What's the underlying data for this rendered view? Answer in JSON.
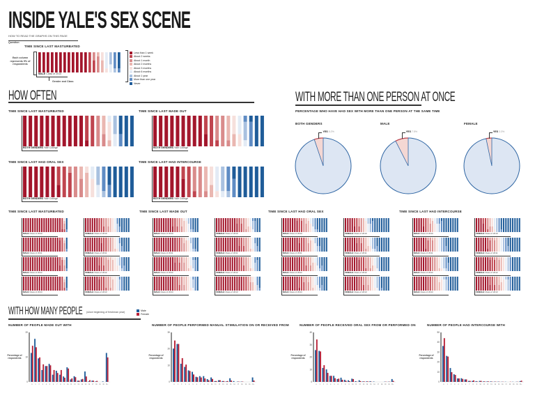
{
  "title": "INSIDE YALE'S SEX SCENE",
  "how_to_read": {
    "heading": "HOW TO READ THE GRAPHS ON THIS PAGE",
    "question_label": "Question",
    "question": "TIME SINCE LAST MASTURBATED",
    "column_note": "Each column represents 5% of respondents",
    "gender_label": "MALE",
    "class_label": "Class of 2010",
    "gender_class_note": "Gender and Class",
    "example_distribution": [
      60,
      8,
      6,
      4,
      3,
      6,
      4,
      5,
      4
    ]
  },
  "legend": {
    "categories": [
      "Less than 1 week",
      "About 2 weeks",
      "About 1 month",
      "About 2 months",
      "About 3 months",
      "About 6 months",
      "About 1 year",
      "More than one year",
      "Never"
    ],
    "colors": [
      "#a3162c",
      "#c0454f",
      "#d98b8b",
      "#eab7b1",
      "#f6e0dc",
      "#e3ebf5",
      "#a9c1e0",
      "#5f8cc4",
      "#1f5c99"
    ]
  },
  "how_often": {
    "heading": "HOW OFTEN",
    "group_gender": "BOTH GENDERS",
    "group_class": "Yale College",
    "charts": [
      {
        "question": "TIME SINCE LAST MASTURBATED",
        "distribution": [
          56,
          9,
          7,
          4,
          3,
          3,
          3,
          2,
          13
        ]
      },
      {
        "question": "TIME SINCE LAST MADE OUT",
        "distribution": [
          47,
          9,
          10,
          6,
          5,
          4,
          3,
          5,
          11
        ]
      },
      {
        "question": "TIME SINCE LAST HAD ORAL SEX",
        "distribution": [
          32,
          12,
          9,
          6,
          4,
          4,
          4,
          6,
          23
        ]
      },
      {
        "question": "TIME SINCE LAST HAD INTERCOURSE",
        "distribution": [
          28,
          8,
          10,
          6,
          4,
          5,
          5,
          7,
          27
        ]
      }
    ]
  },
  "by_class": {
    "male_label": "MALE",
    "female_label": "FEMALE",
    "classes": [
      "Class of 2010",
      "Class of 2011",
      "Class of 2012",
      "Class of 2013"
    ],
    "sections": [
      {
        "question": "TIME SINCE LAST MASTURBATED",
        "male": [
          [
            86,
            5,
            2,
            1,
            1,
            0,
            0,
            1,
            4
          ],
          [
            84,
            6,
            3,
            1,
            1,
            0,
            0,
            1,
            4
          ],
          [
            82,
            7,
            3,
            2,
            1,
            0,
            0,
            1,
            4
          ],
          [
            85,
            6,
            2,
            1,
            1,
            0,
            0,
            1,
            4
          ]
        ],
        "female": [
          [
            30,
            12,
            10,
            8,
            6,
            4,
            3,
            4,
            23
          ],
          [
            38,
            12,
            10,
            6,
            5,
            4,
            3,
            4,
            18
          ],
          [
            32,
            10,
            12,
            10,
            8,
            5,
            4,
            6,
            13
          ],
          [
            34,
            12,
            10,
            8,
            6,
            5,
            4,
            6,
            15
          ]
        ]
      },
      {
        "question": "TIME SINCE LAST MADE OUT",
        "male": [
          [
            42,
            10,
            10,
            7,
            5,
            4,
            3,
            5,
            14
          ],
          [
            50,
            10,
            8,
            6,
            5,
            4,
            3,
            5,
            9
          ],
          [
            48,
            10,
            10,
            8,
            6,
            4,
            3,
            5,
            6
          ],
          [
            45,
            12,
            10,
            8,
            6,
            5,
            3,
            6,
            5
          ]
        ],
        "female": [
          [
            48,
            10,
            8,
            6,
            5,
            4,
            3,
            5,
            11
          ],
          [
            52,
            10,
            8,
            6,
            5,
            4,
            3,
            4,
            8
          ],
          [
            50,
            12,
            8,
            6,
            5,
            4,
            3,
            6,
            6
          ],
          [
            60,
            10,
            8,
            5,
            4,
            3,
            2,
            4,
            4
          ]
        ]
      },
      {
        "question": "TIME SINCE LAST HAD ORAL SEX",
        "male": [
          [
            34,
            10,
            9,
            6,
            4,
            4,
            4,
            5,
            24
          ],
          [
            38,
            12,
            8,
            6,
            5,
            4,
            4,
            5,
            18
          ],
          [
            40,
            12,
            10,
            6,
            5,
            4,
            4,
            6,
            13
          ],
          [
            36,
            12,
            10,
            8,
            6,
            5,
            4,
            6,
            13
          ]
        ],
        "female": [
          [
            22,
            10,
            8,
            5,
            4,
            4,
            5,
            6,
            36
          ],
          [
            28,
            10,
            8,
            6,
            5,
            4,
            5,
            6,
            28
          ],
          [
            34,
            12,
            10,
            6,
            5,
            4,
            4,
            5,
            20
          ],
          [
            30,
            12,
            10,
            8,
            6,
            5,
            4,
            6,
            19
          ]
        ]
      },
      {
        "question": "TIME SINCE LAST HAD INTERCOURSE",
        "male": [
          [
            22,
            8,
            8,
            6,
            4,
            5,
            5,
            6,
            36
          ],
          [
            26,
            8,
            10,
            6,
            5,
            5,
            5,
            7,
            28
          ],
          [
            30,
            10,
            10,
            6,
            5,
            5,
            5,
            7,
            22
          ],
          [
            30,
            10,
            10,
            8,
            6,
            5,
            5,
            6,
            20
          ]
        ],
        "female": [
          [
            18,
            8,
            6,
            5,
            4,
            4,
            5,
            6,
            44
          ],
          [
            26,
            8,
            10,
            6,
            5,
            5,
            5,
            7,
            28
          ],
          [
            34,
            10,
            10,
            6,
            5,
            5,
            5,
            5,
            20
          ],
          [
            32,
            10,
            10,
            6,
            6,
            5,
            5,
            6,
            20
          ]
        ]
      }
    ]
  },
  "multi_person": {
    "heading": "WITH MORE THAN ONE PERSON AT ONCE",
    "subtitle": "PERCENTAGE WHO HAVE HAD SEX WITH MORE THAN ONE PERSON AT THE SAME TIME",
    "yes_label": "YES",
    "fill_colors": {
      "no": "#dde6f3",
      "no_stroke": "#2e65a3",
      "yes": "#f4d7d3",
      "yes_stroke": "#c0454f"
    }
  },
  "chart_data": [
    {
      "type": "pie",
      "title": "BOTH GENDERS",
      "slices": [
        {
          "label": "YES",
          "value": 5.2,
          "display": "5.2%"
        },
        {
          "label": "",
          "value": 94.8
        }
      ]
    },
    {
      "type": "pie",
      "title": "MALE",
      "slices": [
        {
          "label": "YES",
          "value": 7.5,
          "display": "7.5%"
        },
        {
          "label": "",
          "value": 92.5
        }
      ]
    },
    {
      "type": "pie",
      "title": "FEMALE",
      "slices": [
        {
          "label": "YES",
          "value": 3.3,
          "display": "3.3%"
        },
        {
          "label": "",
          "value": 96.7
        }
      ]
    },
    {
      "type": "bar",
      "title": "NUMBER OF PEOPLE MADE OUT WITH",
      "ylabel": "Percentage of respondents",
      "ylim": [
        0,
        20
      ],
      "yticks": [
        0,
        10,
        20
      ],
      "categories": [
        "0",
        "1",
        "2",
        "3",
        "4",
        "5",
        "6",
        "7",
        "8",
        "9",
        "10",
        "11",
        "12",
        "13",
        "14",
        "15",
        "16",
        "17",
        "18",
        "19",
        "20",
        "21+"
      ],
      "series": [
        {
          "name": "Male",
          "values": [
            11.7,
            17.4,
            9.5,
            4.8,
            6.4,
            7.3,
            2.9,
            4.5,
            2.9,
            2.2,
            5.9,
            1.0,
            2.3,
            0.5,
            1.0,
            4.2,
            0.2,
            0.5,
            0.2,
            0,
            0.2,
            11.7
          ]
        },
        {
          "name": "Female",
          "values": [
            14.6,
            14.0,
            9.9,
            7.1,
            6.4,
            6.7,
            4.8,
            3.6,
            4.8,
            1.7,
            5.4,
            1.4,
            1.9,
            0.5,
            1.2,
            2.2,
            0.7,
            0.5,
            0.4,
            0,
            0,
            9.9
          ]
        }
      ]
    },
    {
      "type": "bar",
      "title": "NUMBER OF PEOPLE PERFORMED MANUAL STIMULATION ON OR RECEIVED FROM",
      "ylabel": "Percentage of respondents",
      "ylim": [
        0,
        30
      ],
      "yticks": [
        0,
        10,
        20,
        30
      ],
      "categories": [
        "0",
        "1",
        "2",
        "3",
        "4",
        "5",
        "6",
        "7",
        "8",
        "9",
        "10",
        "11",
        "12",
        "13",
        "14",
        "15",
        "16",
        "17",
        "18",
        "19",
        "20",
        "21+"
      ],
      "series": [
        {
          "name": "Male",
          "values": [
            20.2,
            23.0,
            11.0,
            9.1,
            7.0,
            6.1,
            3.1,
            3.5,
            3.5,
            1.7,
            2.7,
            0.5,
            1.0,
            0.5,
            0.3,
            2.2,
            0.5,
            0.2,
            0.2,
            0,
            0,
            2.7
          ]
        },
        {
          "name": "Female",
          "values": [
            25.1,
            23.0,
            14.4,
            10.5,
            6.6,
            4.5,
            2.8,
            2.7,
            2.1,
            1.0,
            1.8,
            0.5,
            1.0,
            0.5,
            0.5,
            0.8,
            0,
            0.2,
            0.2,
            0,
            0,
            0.8
          ]
        }
      ]
    },
    {
      "type": "bar",
      "title": "NUMBER OF PEOPLE RECEIVED ORAL SEX FROM OR PERFORMED ON",
      "ylabel": "Percentage of respondents",
      "ylim": [
        0,
        40
      ],
      "yticks": [
        0,
        10,
        20,
        30,
        40
      ],
      "categories": [
        "0",
        "1",
        "2",
        "3",
        "4",
        "5",
        "6",
        "7",
        "8",
        "9",
        "10",
        "11",
        "12",
        "13",
        "14",
        "15",
        "16",
        "17",
        "18",
        "19",
        "20",
        "21+"
      ],
      "series": [
        {
          "name": "Male",
          "values": [
            25.7,
            25.1,
            11.3,
            10.1,
            4.9,
            4.9,
            2.3,
            3.4,
            1.7,
            1.3,
            2.6,
            0.6,
            1.3,
            0.4,
            0.4,
            0.6,
            0.3,
            0,
            0,
            0.2,
            0.2,
            2.3
          ]
        },
        {
          "name": "Female",
          "values": [
            34.3,
            24.6,
            13.5,
            7.3,
            4.9,
            3.0,
            2.6,
            1.7,
            0.9,
            0.6,
            2.3,
            0.2,
            0.6,
            0.4,
            0.4,
            0.2,
            0,
            0,
            0,
            0.2,
            0.2,
            0.8
          ]
        }
      ]
    },
    {
      "type": "bar",
      "title": "NUMBER OF PEOPLE HAD INTERCOURSE WITH",
      "ylabel": "Percentage of respondents",
      "ylim": [
        0,
        50
      ],
      "yticks": [
        0,
        10,
        20,
        30,
        40,
        50
      ],
      "categories": [
        "0",
        "1",
        "2",
        "3",
        "4",
        "5",
        "6",
        "7",
        "8",
        "9",
        "10",
        "11",
        "12",
        "13",
        "14",
        "15",
        "16",
        "17",
        "18",
        "19",
        "20",
        "21+"
      ],
      "series": [
        {
          "name": "Male",
          "values": [
            36.3,
            26.3,
            14.0,
            7.7,
            3.5,
            3.7,
            2.5,
            1.0,
            1.0,
            0.8,
            1.0,
            0.5,
            0.5,
            0.5,
            0.3,
            0.3,
            0.2,
            0.2,
            0,
            0.2,
            0.2,
            0.8
          ]
        },
        {
          "name": "Female",
          "values": [
            44.2,
            25.6,
            9.8,
            7.0,
            3.5,
            3.0,
            2.5,
            1.0,
            1.5,
            0.4,
            1.0,
            0.5,
            0.5,
            0.3,
            0.3,
            0.2,
            0.2,
            0,
            0.2,
            0,
            0.2,
            1.2
          ]
        }
      ]
    }
  ],
  "how_many": {
    "heading": "WITH HOW MANY PEOPLE",
    "note": "(since beginning of freshman year)",
    "legend": [
      {
        "label": "Male",
        "color": "#1f5c99"
      },
      {
        "label": "Female",
        "color": "#b81f36"
      }
    ]
  }
}
